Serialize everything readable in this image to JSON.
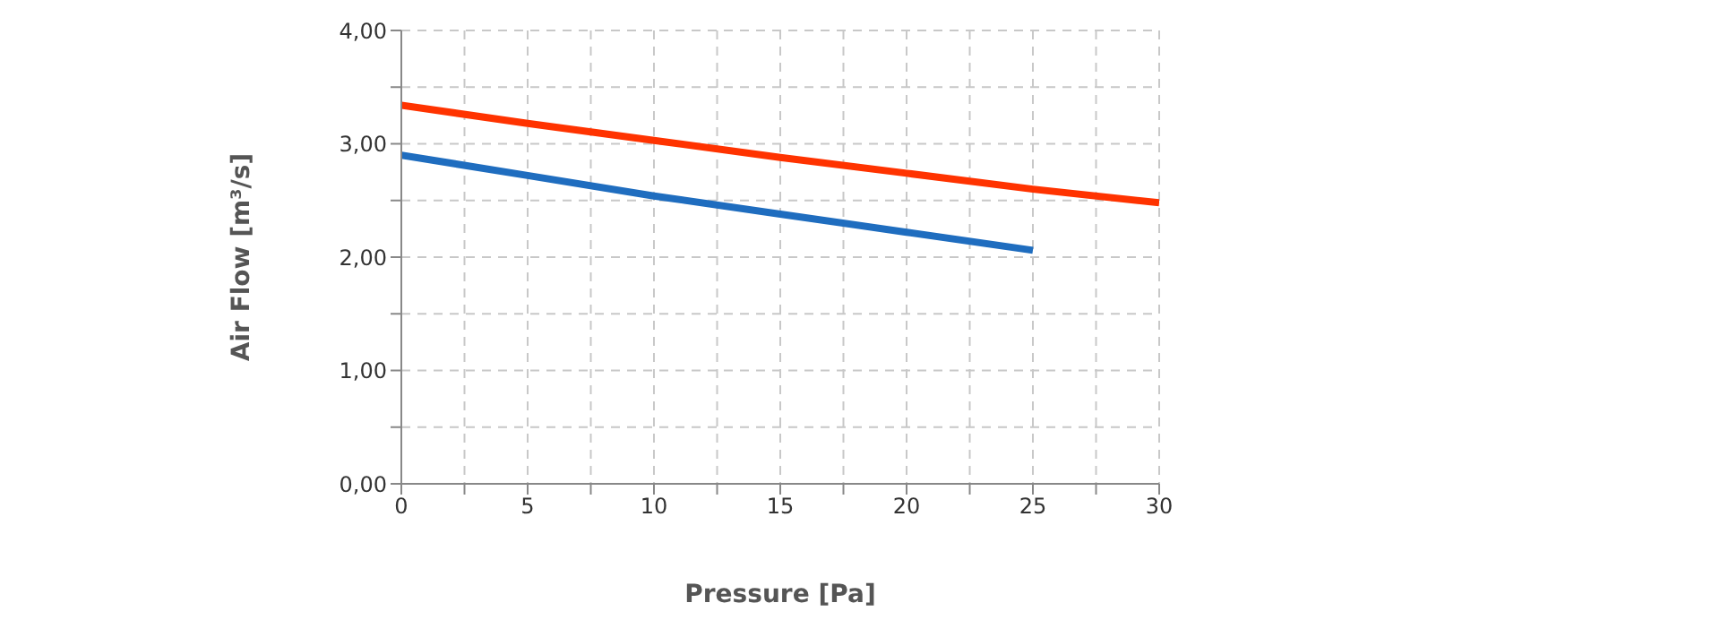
{
  "chart_data": {
    "type": "line",
    "xlabel": "Pressure [Pa]",
    "ylabel": "Air Flow [m³/s]",
    "xlim": [
      0,
      30
    ],
    "ylim": [
      0,
      4
    ],
    "xticks": [
      0,
      {
        "value": 2.5,
        "label": null
      },
      5,
      {
        "value": 7.5,
        "label": null
      },
      10,
      {
        "value": 12.5,
        "label": null
      },
      15,
      {
        "value": 17.5,
        "label": null
      },
      20,
      {
        "value": 22.5,
        "label": null
      },
      25,
      {
        "value": 27.5,
        "label": null
      },
      30
    ],
    "yticks": [
      {
        "value": 0,
        "label": "0,00"
      },
      {
        "value": 0.5,
        "label": null
      },
      {
        "value": 1,
        "label": "1,00"
      },
      {
        "value": 1.5,
        "label": null
      },
      {
        "value": 2,
        "label": "2,00"
      },
      {
        "value": 2.5,
        "label": null
      },
      {
        "value": 3,
        "label": "3,00"
      },
      {
        "value": 3.5,
        "label": null
      },
      {
        "value": 4,
        "label": "4,00"
      }
    ],
    "grid": true,
    "marker": "none",
    "line_style": "solid",
    "series": [
      {
        "color": "#1f6dbf",
        "x": [
          0,
          5,
          10,
          15,
          20,
          25
        ],
        "values": [
          2.9,
          2.72,
          2.54,
          2.38,
          2.22,
          2.06
        ]
      },
      {
        "color": "#ff3300",
        "x": [
          0,
          5,
          10,
          15,
          20,
          25,
          30
        ],
        "values": [
          3.34,
          3.18,
          3.03,
          2.88,
          2.74,
          2.6,
          2.48
        ]
      }
    ]
  }
}
